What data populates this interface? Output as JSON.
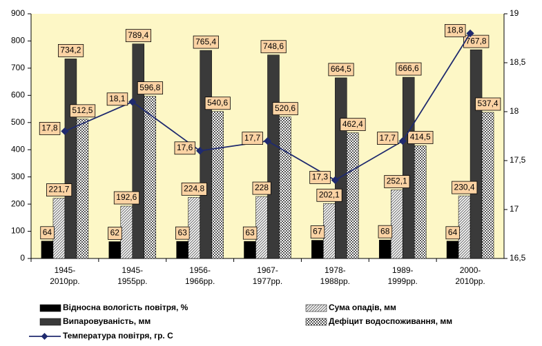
{
  "chart_data": {
    "type": "bar",
    "categories": [
      "1945-2010рр.",
      "1945-1955рр.",
      "1956-1966рр.",
      "1967-1977рр.",
      "1978-1988рр.",
      "1989-1999рр.",
      "2000-2010рр."
    ],
    "series": [
      {
        "name": "Відносна вологість повітря, %",
        "color": "#000000",
        "values": [
          64,
          62,
          63,
          63,
          67,
          68,
          64
        ]
      },
      {
        "name": "Сума опадів, мм",
        "color": "#7a7a7a",
        "pattern": "diagonal",
        "values": [
          221.7,
          192.6,
          224.8,
          228,
          202.1,
          252.1,
          230.4
        ],
        "value_labels": [
          "221,7",
          "192,6",
          "224,8",
          "228",
          "202,1",
          "252,1",
          "230,4"
        ]
      },
      {
        "name": "Випаровуваність, мм",
        "color": "#3a3a3a",
        "values": [
          734.2,
          789.4,
          765.4,
          748.6,
          664.5,
          666.6,
          767.8
        ],
        "value_labels": [
          "734,2",
          "789,4",
          "765,4",
          "748,6",
          "664,5",
          "666,6",
          "767,8"
        ]
      },
      {
        "name": "Дефіцит водоспоживання, мм",
        "color": "#555555",
        "pattern": "grid",
        "values": [
          512.5,
          596.8,
          540.6,
          520.6,
          462.4,
          414.5,
          537.4
        ],
        "value_labels": [
          "512,5",
          "596,8",
          "540,6",
          "520,6",
          "462,4",
          "414,5",
          "537,4"
        ]
      },
      {
        "name": "Температура повітря, гр. С",
        "color": "#1f2a6e",
        "type": "line",
        "axis": "y2",
        "values": [
          17.8,
          18.1,
          17.6,
          17.7,
          17.3,
          17.7,
          18.8
        ],
        "value_labels": [
          "17,8",
          "18,1",
          "17,6",
          "17,7",
          "17,3",
          "17,7",
          "18,8"
        ]
      }
    ],
    "ylim": [
      0,
      900
    ],
    "yticks": [
      0,
      100,
      200,
      300,
      400,
      500,
      600,
      700,
      800,
      900
    ],
    "y2lim": [
      16.5,
      19
    ],
    "y2ticks": [
      {
        "value": 16.5,
        "label": "16,5"
      },
      17,
      {
        "value": 17.5,
        "label": "17,5"
      },
      18,
      {
        "value": 18.5,
        "label": "18,5"
      },
      19
    ],
    "grid": false,
    "legend": "bottom",
    "background": "#fdf7c6",
    "label_box_color": "#fbd3a4"
  }
}
